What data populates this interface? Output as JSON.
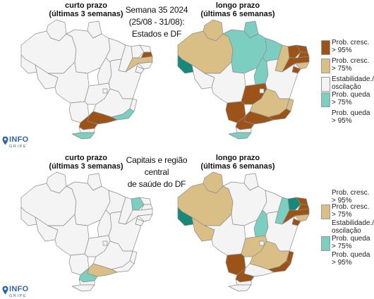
{
  "colors": {
    "prob_cresc_95": "#9c5317",
    "prob_cresc_75": "#d9bf86",
    "estabilidade": "#f4f4f4",
    "prob_queda_75": "#7ccfc0",
    "prob_queda_95": "#17887a",
    "logo": "#2f66a8",
    "border": "#8c8c8c"
  },
  "top": {
    "left_title": [
      "curto prazo",
      "(últimas 3 semanas)"
    ],
    "right_title": [
      "longo prazo",
      "(últimas 6 semanas)"
    ],
    "center_title": [
      "Semana 35 2024",
      "(25/08 - 31/08):",
      "Estados e DF"
    ]
  },
  "bottom": {
    "left_title": [
      "curto prazo",
      "(últimas 3 semanas)"
    ],
    "right_title": [
      "longo prazo",
      "(últimas 6 semanas)"
    ],
    "center_title": [
      "Capitais e região central",
      "de saúde do DF"
    ]
  },
  "legend": {
    "items": [
      {
        "lines": [
          "Prob. cresc.",
          "> 95%"
        ],
        "color_key": "prob_cresc_95"
      },
      {
        "lines": [
          "Prob. cresc.",
          "> 75%"
        ],
        "color_key": "prob_cresc_75"
      },
      {
        "lines": [
          "Estabilidade./",
          "oscilação"
        ],
        "color_key": "estabilidade"
      },
      {
        "lines": [
          "Prob. queda",
          "> 75%"
        ],
        "color_key": "prob_queda_75"
      },
      {
        "lines": [
          "Prob. queda",
          "> 95%"
        ],
        "color_key": "prob_queda_95"
      }
    ]
  },
  "logo": {
    "word": "INFO",
    "sub": "GRIPE",
    "icon": "location-pin-icon"
  },
  "maps": {
    "top_left": {
      "RR": "E",
      "AP": "E",
      "AM": "E",
      "PA": "E",
      "AC": "E",
      "RO": "E",
      "MT": "E",
      "TO": "E",
      "MA": "E",
      "PI": "E",
      "CE": "E",
      "RN": "E",
      "PB": "C95",
      "PE": "C75",
      "AL": "E",
      "SE": "E",
      "BA": "E",
      "GO": "E",
      "DF": "E",
      "MS": "E",
      "MG": "E",
      "ES": "E",
      "RJ": "Q75",
      "SP": "C95",
      "PR": "C95",
      "SC": "E",
      "RS": "Q75"
    },
    "top_right": {
      "RR": "C75",
      "AP": "Q75",
      "AM": "C75",
      "PA": "Q75",
      "AC": "Q95",
      "RO": "E",
      "MT": "E",
      "TO": "Q75",
      "MA": "Q75",
      "PI": "C75",
      "CE": "C95",
      "RN": "C95",
      "PB": "C95",
      "PE": "C95",
      "AL": "C75",
      "SE": "C95",
      "BA": "E",
      "GO": "C95",
      "DF": "E",
      "MS": "C95",
      "MG": "C75",
      "ES": "C75",
      "RJ": "C95",
      "SP": "C95",
      "PR": "C95",
      "SC": "E",
      "RS": "Q75"
    },
    "bottom_left": {
      "RR": "E",
      "AP": "E",
      "AM": "E",
      "PA": "E",
      "AC": "E",
      "RO": "E",
      "MT": "E",
      "TO": "E",
      "MA": "E",
      "PI": "E",
      "CE": "Q75",
      "RN": "E",
      "PB": "E",
      "PE": "E",
      "AL": "E",
      "SE": "E",
      "BA": "E",
      "GO": "E",
      "DF": "E",
      "MS": "E",
      "MG": "E",
      "ES": "E",
      "RJ": "E",
      "SP": "C75",
      "PR": "Q75",
      "SC": "E",
      "RS": "E"
    },
    "bottom_right": {
      "RR": "C75",
      "AP": "E",
      "AM": "C75",
      "PA": "E",
      "AC": "Q95",
      "RO": "C75",
      "MT": "E",
      "TO": "Q75",
      "MA": "E",
      "PI": "Q75",
      "CE": "Q95",
      "RN": "C95",
      "PB": "C95",
      "PE": "C95",
      "AL": "C75",
      "SE": "C95",
      "BA": "E",
      "GO": "C75",
      "DF": "E",
      "MS": "C95",
      "MG": "C75",
      "ES": "C95",
      "RJ": "C95",
      "SP": "E",
      "PR": "C95",
      "SC": "E",
      "RS": "E"
    }
  }
}
